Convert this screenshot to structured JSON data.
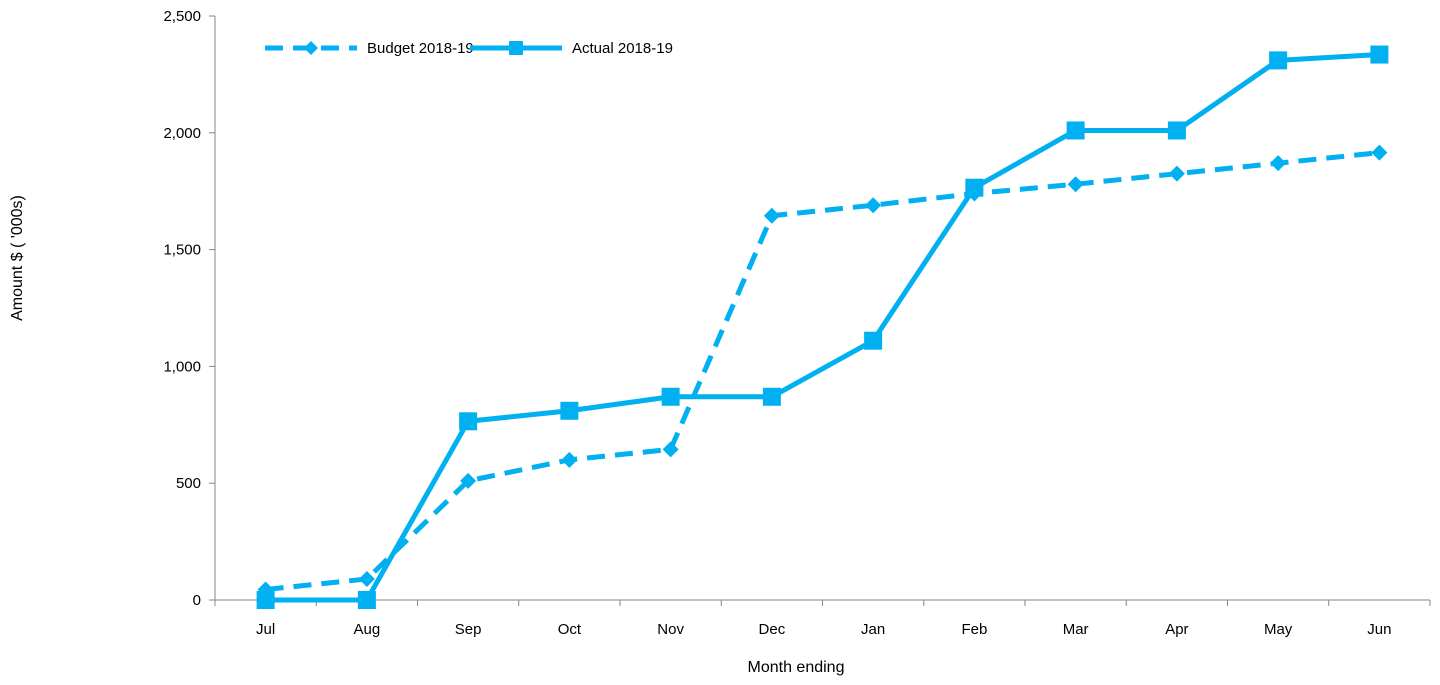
{
  "chart_data": {
    "type": "line",
    "title": "",
    "xlabel": "Month ending",
    "ylabel": "Amount $ ( '000s)",
    "categories": [
      "Jul",
      "Aug",
      "Sep",
      "Oct",
      "Nov",
      "Dec",
      "Jan",
      "Feb",
      "Mar",
      "Apr",
      "May",
      "Jun"
    ],
    "y_ticks": [
      "0",
      "500",
      "1,000",
      "1,500",
      "2,000",
      "2,500"
    ],
    "ylim": [
      0,
      2500
    ],
    "grid": false,
    "legend_position": "top-left",
    "series": [
      {
        "name": "Budget 2018-19",
        "style": "dashed",
        "marker": "diamond",
        "color": "#00b0f0",
        "values": [
          45,
          90,
          510,
          600,
          645,
          1645,
          1690,
          1740,
          1780,
          1825,
          1870,
          1915
        ]
      },
      {
        "name": "Actual 2018-19",
        "style": "solid",
        "marker": "square",
        "color": "#00b0f0",
        "values": [
          0,
          0,
          765,
          810,
          870,
          870,
          1110,
          1765,
          2010,
          2010,
          2310,
          2335
        ]
      }
    ]
  }
}
